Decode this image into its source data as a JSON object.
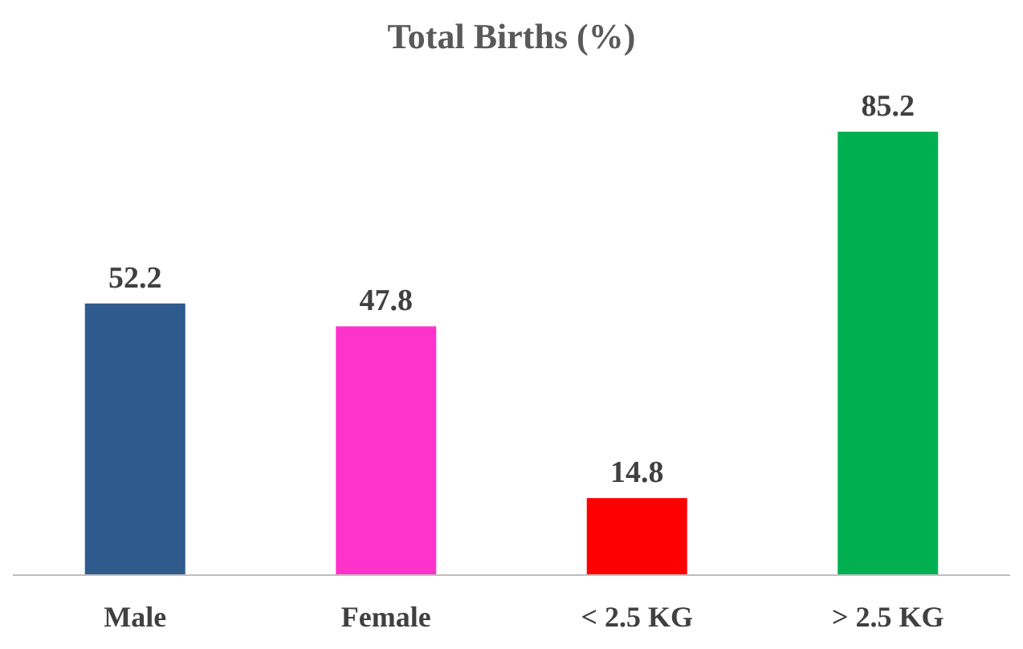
{
  "chart_data": {
    "type": "bar",
    "title": "Total Births (%)",
    "categories": [
      "Male",
      "Female",
      "< 2.5 KG",
      "> 2.5 KG"
    ],
    "values": [
      52.2,
      47.8,
      14.8,
      85.2
    ],
    "colors": [
      "#2f5a8e",
      "#ff33cc",
      "#ff0000",
      "#00b050"
    ],
    "data_labels": true
  }
}
